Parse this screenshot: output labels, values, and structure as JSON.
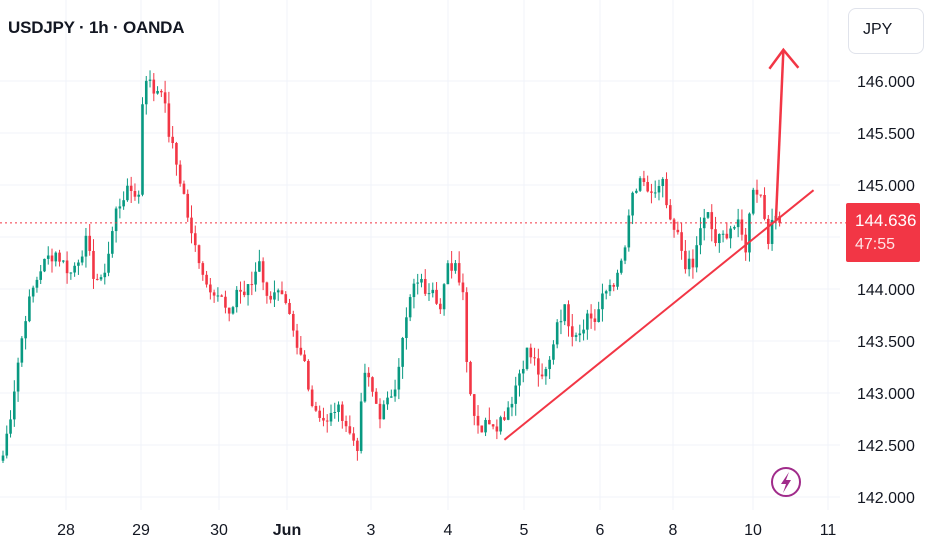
{
  "header": {
    "title": "USDJPY · 1h · OANDA"
  },
  "currency_label": "JPY",
  "last_price": {
    "value": "144.636",
    "countdown": "47:55"
  },
  "colors": {
    "up": "#089981",
    "down": "#f23645",
    "line": "#f23645",
    "grid": "#f0f3fa",
    "text": "#131722"
  },
  "chart_data": {
    "type": "candlestick",
    "title": "USDJPY · 1h · OANDA",
    "y_ticks": [
      "142.000",
      "142.500",
      "143.000",
      "143.500",
      "144.000",
      "144.500",
      "145.000",
      "145.500",
      "146.000"
    ],
    "x_ticks": [
      "28",
      "29",
      "30",
      "Jun",
      "3",
      "4",
      "5",
      "6",
      "8",
      "10",
      "11"
    ],
    "ylim": [
      141.95,
      146.55
    ],
    "price_path": [
      [
        0,
        142.4
      ],
      [
        2,
        142.8
      ],
      [
        4,
        143.3
      ],
      [
        6,
        143.75
      ],
      [
        8,
        144.0
      ],
      [
        10,
        144.2
      ],
      [
        12,
        144.3
      ],
      [
        14,
        144.35
      ],
      [
        16,
        144.25
      ],
      [
        18,
        144.15
      ],
      [
        20,
        144.3
      ],
      [
        22,
        144.45
      ],
      [
        24,
        144.15
      ],
      [
        26,
        144.05
      ],
      [
        28,
        144.35
      ],
      [
        30,
        144.75
      ],
      [
        32,
        144.9
      ],
      [
        34,
        144.95
      ],
      [
        36,
        144.9
      ],
      [
        37,
        145.8
      ],
      [
        38,
        146.05
      ],
      [
        40,
        145.9
      ],
      [
        42,
        145.95
      ],
      [
        44,
        145.5
      ],
      [
        46,
        145.2
      ],
      [
        48,
        144.9
      ],
      [
        50,
        144.5
      ],
      [
        52,
        144.3
      ],
      [
        54,
        144.05
      ],
      [
        56,
        144.0
      ],
      [
        58,
        143.9
      ],
      [
        60,
        143.7
      ],
      [
        62,
        144.0
      ],
      [
        64,
        143.95
      ],
      [
        66,
        144.05
      ],
      [
        68,
        144.3
      ],
      [
        70,
        143.9
      ],
      [
        72,
        144.0
      ],
      [
        74,
        143.9
      ],
      [
        76,
        143.7
      ],
      [
        78,
        143.4
      ],
      [
        80,
        143.3
      ],
      [
        82,
        142.9
      ],
      [
        84,
        142.8
      ],
      [
        86,
        142.7
      ],
      [
        88,
        142.85
      ],
      [
        90,
        142.8
      ],
      [
        92,
        142.6
      ],
      [
        94,
        142.5
      ],
      [
        96,
        143.2
      ],
      [
        98,
        143.0
      ],
      [
        100,
        142.8
      ],
      [
        102,
        142.9
      ],
      [
        104,
        143.1
      ],
      [
        106,
        143.5
      ],
      [
        108,
        143.9
      ],
      [
        110,
        144.1
      ],
      [
        112,
        144.0
      ],
      [
        114,
        144.05
      ],
      [
        116,
        143.8
      ],
      [
        118,
        144.2
      ],
      [
        120,
        144.25
      ],
      [
        122,
        144.0
      ],
      [
        123,
        143.3
      ],
      [
        125,
        142.8
      ],
      [
        127,
        142.65
      ],
      [
        129,
        142.75
      ],
      [
        131,
        142.7
      ],
      [
        133,
        142.8
      ],
      [
        135,
        142.95
      ],
      [
        137,
        143.2
      ],
      [
        139,
        143.4
      ],
      [
        141,
        143.3
      ],
      [
        143,
        143.1
      ],
      [
        145,
        143.3
      ],
      [
        147,
        143.7
      ],
      [
        149,
        143.8
      ],
      [
        151,
        143.6
      ],
      [
        153,
        143.6
      ],
      [
        155,
        143.75
      ],
      [
        157,
        143.7
      ],
      [
        159,
        143.9
      ],
      [
        161,
        144.05
      ],
      [
        163,
        144.1
      ],
      [
        165,
        144.4
      ],
      [
        167,
        144.9
      ],
      [
        169,
        145.0
      ],
      [
        171,
        144.95
      ],
      [
        173,
        144.9
      ],
      [
        175,
        145.0
      ],
      [
        177,
        144.6
      ],
      [
        179,
        144.5
      ],
      [
        181,
        144.25
      ],
      [
        183,
        144.2
      ],
      [
        185,
        144.6
      ],
      [
        187,
        144.7
      ],
      [
        189,
        144.45
      ],
      [
        191,
        144.5
      ],
      [
        193,
        144.6
      ],
      [
        195,
        144.6
      ],
      [
        197,
        144.4
      ],
      [
        199,
        145.0
      ],
      [
        201,
        144.9
      ],
      [
        203,
        144.5
      ],
      [
        205,
        144.7
      ],
      [
        206,
        144.636
      ]
    ],
    "trendline": {
      "from": [
        133,
        142.55
      ],
      "to": [
        215,
        144.95
      ]
    },
    "arrow": {
      "from": [
        205,
        144.65
      ],
      "to": [
        207,
        146.3
      ]
    }
  }
}
